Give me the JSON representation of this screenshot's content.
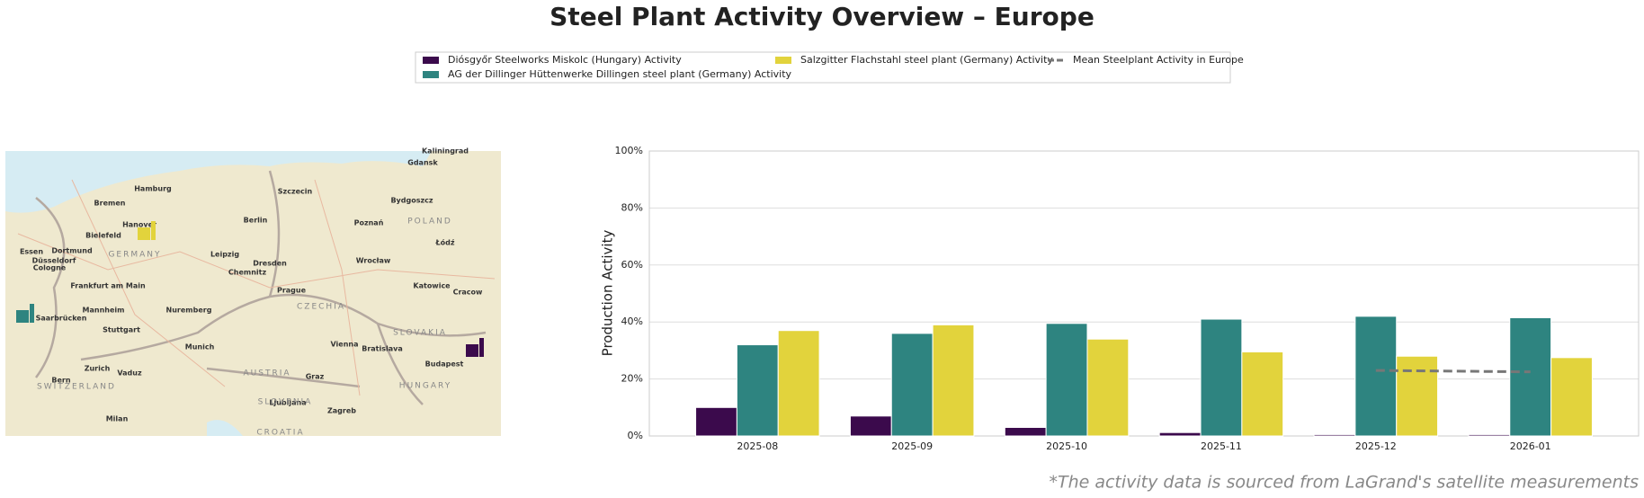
{
  "chart_data": {
    "type": "bar",
    "title": "Steel Plant Activity Overview – Europe",
    "ylabel": "Production Activity",
    "footnote": "*The activity data is sourced from LaGrand's satellite measurements",
    "categories": [
      "2025-08",
      "2025-09",
      "2025-10",
      "2025-11",
      "2025-12",
      "2026-01"
    ],
    "series": [
      {
        "name": "Diósgyőr Steelworks Miskolc (Hungary) Activity",
        "color": "#3b0a4c",
        "values": [
          10,
          7,
          3,
          1.2,
          0.5,
          0.5
        ]
      },
      {
        "name": "AG der Dillinger Hüttenwerke Dillingen steel plant (Germany) Activity",
        "color": "#2e8480",
        "values": [
          32,
          36,
          39.5,
          41,
          42,
          41.5
        ]
      },
      {
        "name": "Salzgitter Flachstahl steel plant (Germany) Activity",
        "color": "#e2d33c",
        "values": [
          37,
          39,
          34,
          29.5,
          28,
          27.5
        ]
      }
    ],
    "mean": {
      "type": "line",
      "name": "Mean Steelplant Activity in Europe",
      "color": "#777777",
      "values": [
        null,
        null,
        null,
        null,
        23,
        22.5
      ]
    },
    "ylim": [
      0,
      100
    ],
    "yticks": [
      {
        "value": 0,
        "label": "0%"
      },
      {
        "value": 20,
        "label": "20%"
      },
      {
        "value": 40,
        "label": "40%"
      },
      {
        "value": 60,
        "label": "60%"
      },
      {
        "value": 80,
        "label": "80%"
      },
      {
        "value": 100,
        "label": "100%"
      }
    ],
    "grid": true,
    "map": {
      "cities": [
        "Hamburg",
        "Bremen",
        "Hanover",
        "Berlin",
        "Bielefeld",
        "Dortmund",
        "Essen",
        "Düsseldorf",
        "Cologne",
        "Leipzig",
        "Dresden",
        "Chemnitz",
        "Frankfurt am Main",
        "Mannheim",
        "Saarbrücken",
        "Nuremberg",
        "Stuttgart",
        "Munich",
        "Prague",
        "Vienna",
        "Bratislava",
        "Budapest",
        "Graz",
        "Zagreb",
        "Ljubljana",
        "Zurich",
        "Vaduz",
        "Bern",
        "Milan",
        "Szczecin",
        "Bydgoszcz",
        "Poznań",
        "Wrocław",
        "Łódź",
        "Katowice",
        "Cracow",
        "Gdansk",
        "Kaliningrad"
      ],
      "countries": [
        "GERMANY",
        "POLAND",
        "CZECHIA",
        "AUSTRIA",
        "SLOVAKIA",
        "HUNGARY",
        "SWITZERLAND",
        "SLOVENIA",
        "CROATIA"
      ]
    }
  }
}
